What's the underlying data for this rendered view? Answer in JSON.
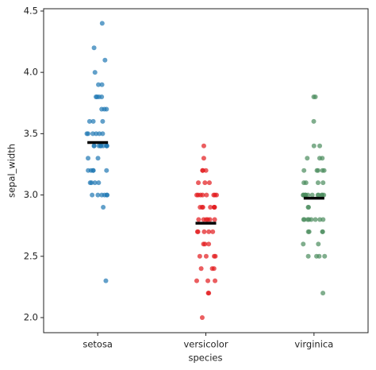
{
  "chart_data": {
    "type": "strip",
    "xlabel": "species",
    "ylabel": "sepal_width",
    "categories": [
      "setosa",
      "versicolor",
      "virginica"
    ],
    "series": [
      {
        "color": "#1f77b4",
        "mean": 3.428,
        "values": [
          3.5,
          3.0,
          3.2,
          3.1,
          3.6,
          3.9,
          3.4,
          3.4,
          2.9,
          3.1,
          3.7,
          3.4,
          3.0,
          3.0,
          4.0,
          4.4,
          3.9,
          3.5,
          3.8,
          3.8,
          3.4,
          3.7,
          3.6,
          3.3,
          3.4,
          3.0,
          3.4,
          3.5,
          3.4,
          3.2,
          3.1,
          3.4,
          4.1,
          4.2,
          3.1,
          3.2,
          3.5,
          3.6,
          3.0,
          3.4,
          3.5,
          2.3,
          3.2,
          3.5,
          3.8,
          3.0,
          3.8,
          3.2,
          3.7,
          3.3
        ]
      },
      {
        "color": "#e31a1c",
        "mean": 2.77,
        "values": [
          3.2,
          3.2,
          3.1,
          2.3,
          2.8,
          2.8,
          3.3,
          2.4,
          2.9,
          2.7,
          2.0,
          3.0,
          2.2,
          2.9,
          2.9,
          3.1,
          3.0,
          2.7,
          2.2,
          2.5,
          3.2,
          2.8,
          2.5,
          2.8,
          2.9,
          3.0,
          2.8,
          3.0,
          2.9,
          2.6,
          2.4,
          2.4,
          2.7,
          2.7,
          3.0,
          3.4,
          3.1,
          2.3,
          3.0,
          2.5,
          2.6,
          3.0,
          2.6,
          2.3,
          2.7,
          3.0,
          2.9,
          2.9,
          2.5,
          2.8
        ]
      },
      {
        "color": "#4a8c5c",
        "mean": 2.974,
        "values": [
          3.3,
          2.7,
          3.0,
          2.9,
          3.0,
          3.0,
          2.5,
          2.9,
          2.5,
          3.6,
          3.2,
          2.7,
          3.0,
          2.5,
          2.8,
          3.2,
          3.0,
          3.8,
          2.6,
          2.2,
          3.2,
          2.8,
          2.8,
          2.7,
          3.3,
          3.2,
          2.8,
          3.0,
          2.8,
          3.0,
          2.8,
          3.8,
          2.8,
          2.8,
          2.6,
          3.0,
          3.4,
          3.1,
          3.0,
          3.1,
          3.1,
          3.1,
          2.7,
          3.2,
          3.3,
          3.0,
          2.5,
          3.0,
          3.4,
          3.0
        ]
      }
    ],
    "mean_color": "#000000",
    "ylim": [
      1.877,
      4.519
    ],
    "yticks": [
      {
        "value": 2,
        "label": "2.0"
      },
      2.5,
      {
        "value": 3,
        "label": "3.0"
      },
      3.5,
      {
        "value": 4,
        "label": "4.0"
      },
      4.5
    ]
  }
}
